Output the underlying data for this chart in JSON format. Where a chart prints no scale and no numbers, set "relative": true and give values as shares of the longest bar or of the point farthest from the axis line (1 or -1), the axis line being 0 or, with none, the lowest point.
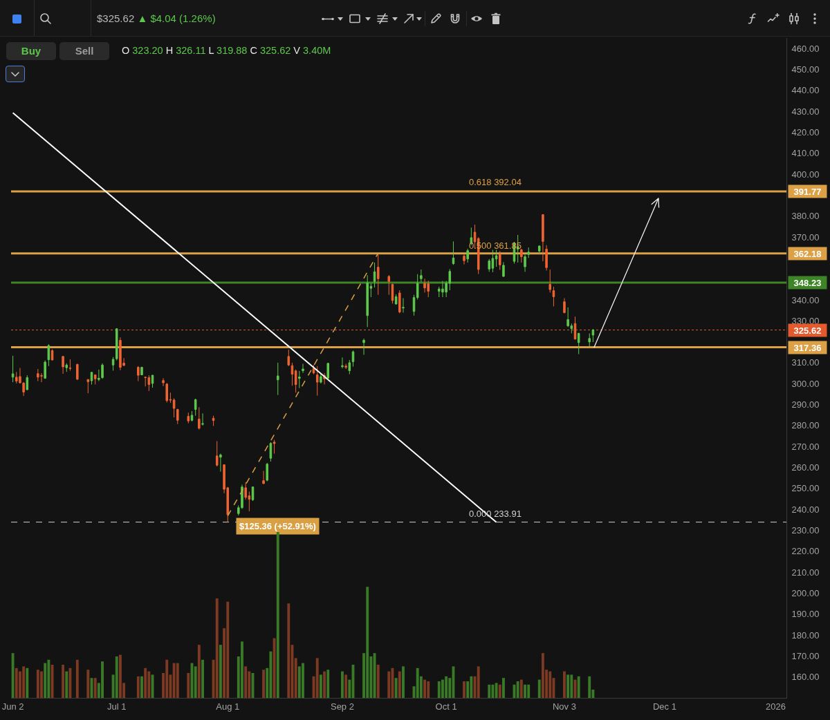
{
  "chart_data": [
    {
      "type": "candlestick",
      "title": "$325.62 ▲ $4.04 (1.26%)",
      "subtitle": "O 323.20 H 326.11 L 319.88 C 325.62 V 3.40M",
      "x": [
        "2025-06-02",
        "2025-06-03",
        "2025-06-04",
        "2025-06-05",
        "2025-06-06",
        "2025-06-09",
        "2025-06-10",
        "2025-06-11",
        "2025-06-12",
        "2025-06-13",
        "2025-06-16",
        "2025-06-17",
        "2025-06-18",
        "2025-06-20",
        "2025-06-23",
        "2025-06-24",
        "2025-06-25",
        "2025-06-26",
        "2025-06-27",
        "2025-06-30",
        "2025-07-01",
        "2025-07-02",
        "2025-07-03",
        "2025-07-07",
        "2025-07-08",
        "2025-07-09",
        "2025-07-10",
        "2025-07-11",
        "2025-07-14",
        "2025-07-15",
        "2025-07-16",
        "2025-07-17",
        "2025-07-18",
        "2025-07-21",
        "2025-07-22",
        "2025-07-23",
        "2025-07-24",
        "2025-07-25",
        "2025-07-28",
        "2025-07-29",
        "2025-07-30",
        "2025-07-31",
        "2025-08-01",
        "2025-08-04",
        "2025-08-05",
        "2025-08-06",
        "2025-08-07",
        "2025-08-08",
        "2025-08-11",
        "2025-08-12",
        "2025-08-13",
        "2025-08-14",
        "2025-08-15",
        "2025-08-18",
        "2025-08-19",
        "2025-08-20",
        "2025-08-21",
        "2025-08-22",
        "2025-08-25",
        "2025-08-26",
        "2025-08-27",
        "2025-08-28",
        "2025-08-29",
        "2025-09-02",
        "2025-09-03",
        "2025-09-04",
        "2025-09-05",
        "2025-09-08",
        "2025-09-09",
        "2025-09-10",
        "2025-09-11",
        "2025-09-12",
        "2025-09-15",
        "2025-09-16",
        "2025-09-17",
        "2025-09-18",
        "2025-09-19",
        "2025-09-22",
        "2025-09-23",
        "2025-09-24",
        "2025-09-25",
        "2025-09-26",
        "2025-09-29",
        "2025-09-30",
        "2025-10-01",
        "2025-10-02",
        "2025-10-03",
        "2025-10-06",
        "2025-10-07",
        "2025-10-08",
        "2025-10-09",
        "2025-10-10",
        "2025-10-13",
        "2025-10-14",
        "2025-10-15",
        "2025-10-16",
        "2025-10-17",
        "2025-10-20",
        "2025-10-21",
        "2025-10-22",
        "2025-10-23",
        "2025-10-24",
        "2025-10-27",
        "2025-10-28",
        "2025-10-29",
        "2025-10-30",
        "2025-10-31",
        "2025-11-03",
        "2025-11-04",
        "2025-11-05",
        "2025-11-06",
        "2025-11-07",
        "2025-11-10",
        "2025-11-11"
      ],
      "ohlc": [
        [
          303.1,
          313.3,
          300.7,
          304.7
        ],
        [
          303.1,
          305.6,
          300.1,
          301.2
        ],
        [
          303.4,
          307.5,
          300.1,
          300.4
        ],
        [
          300.3,
          300.7,
          294.1,
          296.0
        ],
        [
          297.1,
          304.0,
          297.0,
          302.9
        ],
        [
          304.8,
          307.0,
          301.2,
          303.1
        ],
        [
          303.9,
          305.0,
          300.7,
          303.6
        ],
        [
          302.6,
          311.1,
          302.3,
          310.3
        ],
        [
          311.4,
          318.8,
          308.4,
          318.2
        ],
        [
          315.8,
          316.4,
          311.1,
          311.3
        ],
        [
          313.0,
          313.3,
          304.7,
          308.0
        ],
        [
          307.6,
          309.7,
          305.6,
          308.9
        ],
        [
          307.5,
          311.6,
          306.2,
          307.3
        ],
        [
          309.2,
          309.5,
          301.8,
          302.1
        ],
        [
          302.0,
          302.0,
          295.4,
          300.9
        ],
        [
          301.4,
          305.6,
          299.6,
          305.4
        ],
        [
          304.2,
          304.2,
          299.6,
          302.3
        ],
        [
          302.0,
          306.7,
          301.2,
          302.6
        ],
        [
          302.9,
          309.7,
          302.3,
          308.9
        ],
        [
          308.9,
          312.7,
          306.2,
          311.6
        ],
        [
          311.9,
          326.5,
          311.1,
          326.2
        ],
        [
          320.7,
          322.1,
          306.4,
          307.8
        ],
        [
          309.8,
          312.2,
          308.4,
          308.7
        ],
        [
          307.8,
          308.4,
          301.2,
          304.0
        ],
        [
          304.2,
          308.1,
          304.0,
          307.8
        ],
        [
          303.1,
          303.4,
          298.7,
          302.9
        ],
        [
          302.9,
          304.0,
          296.5,
          299.6
        ],
        [
          300.1,
          304.2,
          298.1,
          304.0
        ],
        [
          301.5,
          302.6,
          298.8,
          300.4
        ],
        [
          299.8,
          300.3,
          291.0,
          291.9
        ],
        [
          292.4,
          295.7,
          290.8,
          292.2
        ],
        [
          292.2,
          293.0,
          283.9,
          288.2
        ],
        [
          287.7,
          288.0,
          280.7,
          282.5
        ],
        [
          284.4,
          286.2,
          281.1,
          282.2
        ],
        [
          282.5,
          286.9,
          282.0,
          284.9
        ],
        [
          287.7,
          292.8,
          284.7,
          292.4
        ],
        [
          283.1,
          288.8,
          278.1,
          278.7
        ],
        [
          280.6,
          285.8,
          280.0,
          280.9
        ],
        [
          283.5,
          284.7,
          279.8,
          282.4
        ],
        [
          265.5,
          272.6,
          260.5,
          261.1
        ],
        [
          264.9,
          266.6,
          258.0,
          266.0
        ],
        [
          261.3,
          261.3,
          247.7,
          249.6
        ],
        [
          250.3,
          250.7,
          233.9,
          237.5
        ],
        [
          238.0,
          241.9,
          237.1,
          240.8
        ],
        [
          240.8,
          251.8,
          240.2,
          250.7
        ],
        [
          250.3,
          252.9,
          244.6,
          245.7
        ],
        [
          246.5,
          248.5,
          239.1,
          244.8
        ],
        [
          244.6,
          250.9,
          244.0,
          250.7
        ],
        [
          253.7,
          258.4,
          252.1,
          252.3
        ],
        [
          253.9,
          262.2,
          253.4,
          261.6
        ],
        [
          264.4,
          272.1,
          262.8,
          271.5
        ],
        [
          272.1,
          273.2,
          266.6,
          271.4
        ],
        [
          301.8,
          310.0,
          294.6,
          303.7
        ],
        [
          313.0,
          316.3,
          308.4,
          308.9
        ],
        [
          308.6,
          310.0,
          299.0,
          304.5
        ],
        [
          306.1,
          306.7,
          295.7,
          299.6
        ],
        [
          302.5,
          306.1,
          297.9,
          303.2
        ],
        [
          306.2,
          309.5,
          305.1,
          307.0
        ],
        [
          307.3,
          308.9,
          304.5,
          305.1
        ],
        [
          304.2,
          308.4,
          294.3,
          300.7
        ],
        [
          300.7,
          305.0,
          300.1,
          303.4
        ],
        [
          303.9,
          305.0,
          299.6,
          302.3
        ],
        [
          302.6,
          310.0,
          302.3,
          309.7
        ],
        [
          308.1,
          312.5,
          307.3,
          308.6
        ],
        [
          308.4,
          309.5,
          307.0,
          307.8
        ],
        [
          306.2,
          311.3,
          304.5,
          310.0
        ],
        [
          310.5,
          315.8,
          308.1,
          315.2
        ],
        [
          319.6,
          321.5,
          313.8,
          320.7
        ],
        [
          332.5,
          351.8,
          327.0,
          348.1
        ],
        [
          345.5,
          347.9,
          341.3,
          346.5
        ],
        [
          348.8,
          357.8,
          345.9,
          353.4
        ],
        [
          355.6,
          361.6,
          342.4,
          350.1
        ],
        [
          351.2,
          351.8,
          342.4,
          348.8
        ],
        [
          347.4,
          347.7,
          338.2,
          339.7
        ],
        [
          338.0,
          342.6,
          337.8,
          341.5
        ],
        [
          343.3,
          344.6,
          333.6,
          334.2
        ],
        [
          336.1,
          340.8,
          333.9,
          336.4
        ],
        [
          334.5,
          342.4,
          332.5,
          341.1
        ],
        [
          341.1,
          352.3,
          340.2,
          347.9
        ],
        [
          350.1,
          354.5,
          348.5,
          351.6
        ],
        [
          347.9,
          350.1,
          343.5,
          345.7
        ],
        [
          347.7,
          349.2,
          341.3,
          344.1
        ],
        [
          344.1,
          346.3,
          341.3,
          345.2
        ],
        [
          343.7,
          349.0,
          341.3,
          345.2
        ],
        [
          343.7,
          349.0,
          341.3,
          347.9
        ],
        [
          347.9,
          354.7,
          344.6,
          353.6
        ],
        [
          357.3,
          367.9,
          356.7,
          360.0
        ],
        [
          360.9,
          361.7,
          356.9,
          358.7
        ],
        [
          359.5,
          364.4,
          357.8,
          363.5
        ],
        [
          366.9,
          374.5,
          366.1,
          369.7
        ],
        [
          372.3,
          375.9,
          364.4,
          367.7
        ],
        [
          369.3,
          369.9,
          352.3,
          354.5
        ],
        [
          354.7,
          359.5,
          353.4,
          358.6
        ],
        [
          355.1,
          363.9,
          353.2,
          359.8
        ],
        [
          359.5,
          363.9,
          355.8,
          361.1
        ],
        [
          361.6,
          363.3,
          354.3,
          356.7
        ],
        [
          351.2,
          358.0,
          351.0,
          356.5
        ],
        [
          358.4,
          367.7,
          357.3,
          367.1
        ],
        [
          364.2,
          371.0,
          357.8,
          365.5
        ],
        [
          363.9,
          364.4,
          357.8,
          360.6
        ],
        [
          355.8,
          361.6,
          353.4,
          360.6
        ],
        [
          361.7,
          365.0,
          360.0,
          362.8
        ],
        [
          363.3,
          366.0,
          361.7,
          365.7
        ],
        [
          380.7,
          380.9,
          358.4,
          367.9
        ],
        [
          364.2,
          366.1,
          354.0,
          355.4
        ],
        [
          347.4,
          354.5,
          343.5,
          344.9
        ],
        [
          344.4,
          346.3,
          336.9,
          341.5
        ],
        [
          339.1,
          340.8,
          333.6,
          333.9
        ],
        [
          327.6,
          336.4,
          327.0,
          330.6
        ],
        [
          326.3,
          328.7,
          324.0,
          327.6
        ],
        [
          328.7,
          332.0,
          321.0,
          321.3
        ],
        [
          319.6,
          324.3,
          314.1,
          324.0
        ],
        [
          319.9,
          324.0,
          317.7,
          321.58
        ],
        [
          323.2,
          326.11,
          319.88,
          325.62
        ]
      ],
      "colors": [
        "#5ec94c",
        "#ef6432",
        "#ef6432",
        "#ef6432",
        "#5ec94c",
        "#ef6432",
        "#ef6432",
        "#5ec94c",
        "#5ec94c",
        "#ef6432",
        "#ef6432",
        "#5ec94c",
        "#ef6432",
        "#ef6432",
        "#ef6432",
        "#5ec94c",
        "#ef6432",
        "#5ec94c",
        "#5ec94c",
        "#5ec94c",
        "#5ec94c",
        "#ef6432",
        "#ef6432",
        "#ef6432",
        "#5ec94c",
        "#ef6432",
        "#ef6432",
        "#5ec94c",
        "#ef6432",
        "#ef6432",
        "#ef6432",
        "#ef6432",
        "#ef6432",
        "#ef6432",
        "#5ec94c",
        "#5ec94c",
        "#ef6432",
        "#5ec94c",
        "#ef6432",
        "#ef6432",
        "#5ec94c",
        "#ef6432",
        "#ef6432",
        "#5ec94c",
        "#5ec94c",
        "#ef6432",
        "#ef6432",
        "#5ec94c",
        "#ef6432",
        "#5ec94c",
        "#5ec94c",
        "#ef6432",
        "#5ec94c",
        "#ef6432",
        "#ef6432",
        "#ef6432",
        "#5ec94c",
        "#5ec94c",
        "#ef6432",
        "#ef6432",
        "#5ec94c",
        "#ef6432",
        "#5ec94c",
        "#5ec94c",
        "#ef6432",
        "#5ec94c",
        "#5ec94c",
        "#5ec94c",
        "#5ec94c",
        "#5ec94c",
        "#5ec94c",
        "#ef6432",
        "#ef6432",
        "#ef6432",
        "#5ec94c",
        "#ef6432",
        "#5ec94c",
        "#5ec94c",
        "#5ec94c",
        "#5ec94c",
        "#ef6432",
        "#ef6432",
        "#5ec94c",
        "#5ec94c",
        "#5ec94c",
        "#5ec94c",
        "#5ec94c",
        "#ef6432",
        "#5ec94c",
        "#5ec94c",
        "#ef6432",
        "#ef6432",
        "#5ec94c",
        "#5ec94c",
        "#5ec94c",
        "#ef6432",
        "#5ec94c",
        "#5ec94c",
        "#5ec94c",
        "#ef6432",
        "#5ec94c",
        "#5ec94c",
        "#5ec94c",
        "#ef6432",
        "#ef6432",
        "#ef6432",
        "#ef6432",
        "#ef6432",
        "#5ec94c",
        "#5ec94c",
        "#ef6432",
        "#5ec94c",
        "#5ec94c",
        "#5ec94c"
      ],
      "series": [
        {
          "type": "line",
          "color": "#ffffff",
          "x": [
            "2025-06-02",
            "2025-10-15"
          ],
          "values": [
            429.3,
            233.9
          ]
        },
        {
          "type": "line",
          "name": "$125.36 (+52.91%)",
          "color": "#d9a043",
          "line_style": "dashed",
          "x": [
            "2025-08-01",
            "2025-09-12"
          ],
          "values": [
            236.9,
            362.3
          ]
        }
      ],
      "xlim": [
        "2025-06-01T12:00",
        "2026-01-04"
      ],
      "ylim": [
        150,
        465
      ],
      "yticks": [
        {
          "value": 460,
          "label": "460.00"
        },
        {
          "value": 450,
          "label": "450.00"
        },
        {
          "value": 440,
          "label": "440.00"
        },
        {
          "value": 430,
          "label": "430.00"
        },
        {
          "value": 420,
          "label": "420.00"
        },
        {
          "value": 410,
          "label": "410.00"
        },
        {
          "value": 400,
          "label": "400.00"
        },
        {
          "value": 380,
          "label": "380.00"
        },
        {
          "value": 370,
          "label": "370.00"
        },
        {
          "value": 340,
          "label": "340.00"
        },
        {
          "value": 330,
          "label": "330.00"
        },
        {
          "value": 310,
          "label": "310.00"
        },
        {
          "value": 300,
          "label": "300.00"
        },
        {
          "value": 290,
          "label": "290.00"
        },
        {
          "value": 280,
          "label": "280.00"
        },
        {
          "value": 270,
          "label": "270.00"
        },
        {
          "value": 260,
          "label": "260.00"
        },
        {
          "value": 250,
          "label": "250.00"
        },
        {
          "value": 240,
          "label": "240.00"
        },
        {
          "value": 230,
          "label": "230.00"
        },
        {
          "value": 220,
          "label": "220.00"
        },
        {
          "value": 210,
          "label": "210.00"
        },
        {
          "value": 200,
          "label": "200.00"
        },
        {
          "value": 190,
          "label": "190.00"
        },
        {
          "value": 180,
          "label": "180.00"
        },
        {
          "value": 170,
          "label": "170.00"
        },
        {
          "value": 160,
          "label": "160.00"
        }
      ],
      "tick_labels": "y",
      "ref_lines": [
        {
          "axis": "y",
          "value": 391.77,
          "label": "391.77",
          "color": "#dca146"
        },
        {
          "axis": "y",
          "value": 362.18,
          "label": "362.18",
          "color": "#dca146"
        },
        {
          "axis": "y",
          "value": 348.23,
          "label": "348.23",
          "color": "#3d8526"
        },
        {
          "axis": "y",
          "value": 325.62,
          "label": "325.62",
          "color": "#e35a2c",
          "line_style": "dotted"
        },
        {
          "axis": "y",
          "value": 317.36,
          "label": "317.36",
          "color": "#dca146"
        },
        {
          "axis": "y",
          "value": 233.91,
          "label": null,
          "color": "#d0d0d0",
          "line_style": "dashed"
        }
      ],
      "annotations": [
        "Buy",
        "Sell",
        {
          "text": "0.618 392.04",
          "x": "2025-10-07",
          "y": 392.04
        },
        {
          "text": "0.500 361.85",
          "x": "2025-10-07",
          "y": 361.85
        },
        {
          "text": "0.000 233.91",
          "x": "2025-10-07",
          "y": 233.91
        }
      ]
    },
    {
      "type": "bar",
      "relative": true,
      "x": [
        "2025-06-02",
        "2025-06-03",
        "2025-06-04",
        "2025-06-05",
        "2025-06-06",
        "2025-06-09",
        "2025-06-10",
        "2025-06-11",
        "2025-06-12",
        "2025-06-13",
        "2025-06-16",
        "2025-06-17",
        "2025-06-18",
        "2025-06-20",
        "2025-06-23",
        "2025-06-24",
        "2025-06-25",
        "2025-06-26",
        "2025-06-27",
        "2025-06-30",
        "2025-07-01",
        "2025-07-02",
        "2025-07-03",
        "2025-07-07",
        "2025-07-08",
        "2025-07-09",
        "2025-07-10",
        "2025-07-11",
        "2025-07-14",
        "2025-07-15",
        "2025-07-16",
        "2025-07-17",
        "2025-07-18",
        "2025-07-21",
        "2025-07-22",
        "2025-07-23",
        "2025-07-24",
        "2025-07-25",
        "2025-07-28",
        "2025-07-29",
        "2025-07-30",
        "2025-07-31",
        "2025-08-01",
        "2025-08-04",
        "2025-08-05",
        "2025-08-06",
        "2025-08-07",
        "2025-08-08",
        "2025-08-11",
        "2025-08-12",
        "2025-08-13",
        "2025-08-14",
        "2025-08-15",
        "2025-08-18",
        "2025-08-19",
        "2025-08-20",
        "2025-08-21",
        "2025-08-22",
        "2025-08-25",
        "2025-08-26",
        "2025-08-27",
        "2025-08-28",
        "2025-08-29",
        "2025-09-02",
        "2025-09-03",
        "2025-09-04",
        "2025-09-05",
        "2025-09-08",
        "2025-09-09",
        "2025-09-10",
        "2025-09-11",
        "2025-09-12",
        "2025-09-15",
        "2025-09-16",
        "2025-09-17",
        "2025-09-18",
        "2025-09-19",
        "2025-09-22",
        "2025-09-23",
        "2025-09-24",
        "2025-09-25",
        "2025-09-26",
        "2025-09-29",
        "2025-09-30",
        "2025-10-01",
        "2025-10-02",
        "2025-10-03",
        "2025-10-06",
        "2025-10-07",
        "2025-10-08",
        "2025-10-09",
        "2025-10-10",
        "2025-10-13",
        "2025-10-14",
        "2025-10-15",
        "2025-10-16",
        "2025-10-17",
        "2025-10-20",
        "2025-10-21",
        "2025-10-22",
        "2025-10-23",
        "2025-10-24",
        "2025-10-27",
        "2025-10-28",
        "2025-10-29",
        "2025-10-30",
        "2025-10-31",
        "2025-11-03",
        "2025-11-04",
        "2025-11-05",
        "2025-11-06",
        "2025-11-07",
        "2025-11-10",
        "2025-11-11"
      ],
      "values": [
        0.27,
        0.18,
        0.16,
        0.19,
        0.18,
        0.17,
        0.16,
        0.21,
        0.23,
        0.2,
        0.2,
        0.16,
        0.18,
        0.23,
        0.17,
        0.12,
        0.12,
        0.09,
        0.22,
        0.14,
        0.25,
        0.26,
        0.09,
        0.13,
        0.13,
        0.18,
        0.16,
        0.14,
        0.15,
        0.23,
        0.14,
        0.21,
        0.21,
        0.15,
        0.21,
        0.19,
        0.32,
        0.23,
        0.23,
        0.6,
        0.32,
        0.42,
        0.58,
        0.25,
        0.34,
        0.19,
        0.16,
        0.15,
        0.17,
        0.18,
        0.28,
        0.36,
        1,
        0.57,
        0.32,
        0.24,
        0.19,
        0.21,
        0.13,
        0.24,
        0.14,
        0.16,
        0.17,
        0.16,
        0.14,
        0.11,
        0.2,
        0.27,
        0.67,
        0.25,
        0.27,
        0.2,
        0.16,
        0.18,
        0.12,
        0.16,
        0.19,
        0.07,
        0.18,
        0.13,
        0.11,
        0.1,
        0.1,
        0.11,
        0.13,
        0.12,
        0.19,
        0.1,
        0.1,
        0.13,
        0.13,
        0.19,
        0.08,
        0.08,
        0.09,
        0.08,
        0.12,
        0.08,
        0.1,
        0.11,
        0.08,
        0.08,
        0.11,
        0.27,
        0.17,
        0.16,
        0.12,
        0.16,
        0.14,
        0.14,
        0.11,
        0.13,
        0.13,
        0.05
      ],
      "colors": [
        "#3a7a27",
        "#7d3a22",
        "#7d3a22",
        "#7d3a22",
        "#3a7a27",
        "#7d3a22",
        "#7d3a22",
        "#3a7a27",
        "#3a7a27",
        "#7d3a22",
        "#7d3a22",
        "#3a7a27",
        "#7d3a22",
        "#7d3a22",
        "#7d3a22",
        "#3a7a27",
        "#7d3a22",
        "#3a7a27",
        "#3a7a27",
        "#3a7a27",
        "#3a7a27",
        "#7d3a22",
        "#7d3a22",
        "#7d3a22",
        "#3a7a27",
        "#7d3a22",
        "#7d3a22",
        "#3a7a27",
        "#7d3a22",
        "#7d3a22",
        "#7d3a22",
        "#7d3a22",
        "#7d3a22",
        "#7d3a22",
        "#3a7a27",
        "#3a7a27",
        "#7d3a22",
        "#3a7a27",
        "#7d3a22",
        "#7d3a22",
        "#3a7a27",
        "#7d3a22",
        "#7d3a22",
        "#3a7a27",
        "#3a7a27",
        "#7d3a22",
        "#7d3a22",
        "#3a7a27",
        "#7d3a22",
        "#3a7a27",
        "#3a7a27",
        "#7d3a22",
        "#3a7a27",
        "#7d3a22",
        "#7d3a22",
        "#7d3a22",
        "#3a7a27",
        "#3a7a27",
        "#7d3a22",
        "#7d3a22",
        "#3a7a27",
        "#7d3a22",
        "#3a7a27",
        "#3a7a27",
        "#7d3a22",
        "#3a7a27",
        "#3a7a27",
        "#3a7a27",
        "#3a7a27",
        "#3a7a27",
        "#3a7a27",
        "#7d3a22",
        "#7d3a22",
        "#7d3a22",
        "#3a7a27",
        "#7d3a22",
        "#3a7a27",
        "#3a7a27",
        "#3a7a27",
        "#3a7a27",
        "#7d3a22",
        "#7d3a22",
        "#3a7a27",
        "#3a7a27",
        "#3a7a27",
        "#3a7a27",
        "#3a7a27",
        "#7d3a22",
        "#3a7a27",
        "#3a7a27",
        "#7d3a22",
        "#7d3a22",
        "#3a7a27",
        "#3a7a27",
        "#3a7a27",
        "#7d3a22",
        "#3a7a27",
        "#3a7a27",
        "#3a7a27",
        "#7d3a22",
        "#3a7a27",
        "#3a7a27",
        "#3a7a27",
        "#7d3a22",
        "#7d3a22",
        "#7d3a22",
        "#7d3a22",
        "#7d3a22",
        "#3a7a27",
        "#3a7a27",
        "#7d3a22",
        "#3a7a27",
        "#3a7a27",
        "#3a7a27"
      ],
      "xlim": [
        "2025-06-01T12:00",
        "2026-01-04"
      ],
      "xticks": [
        {
          "value": "2025-06-02",
          "label": "Jun 2"
        },
        {
          "value": "2025-07-01",
          "label": "Jul 1"
        },
        {
          "value": "2025-08-01",
          "label": "Aug 1"
        },
        {
          "value": "2025-09-02",
          "label": "Sep 2"
        },
        {
          "value": "2025-10-01",
          "label": "Oct 1"
        },
        {
          "value": "2025-11-03",
          "label": "Nov 3"
        },
        {
          "value": "2025-12-01",
          "label": "Dec 1"
        },
        {
          "value": "2026-01-01",
          "label": "2026"
        }
      ],
      "tick_labels": "x"
    }
  ]
}
